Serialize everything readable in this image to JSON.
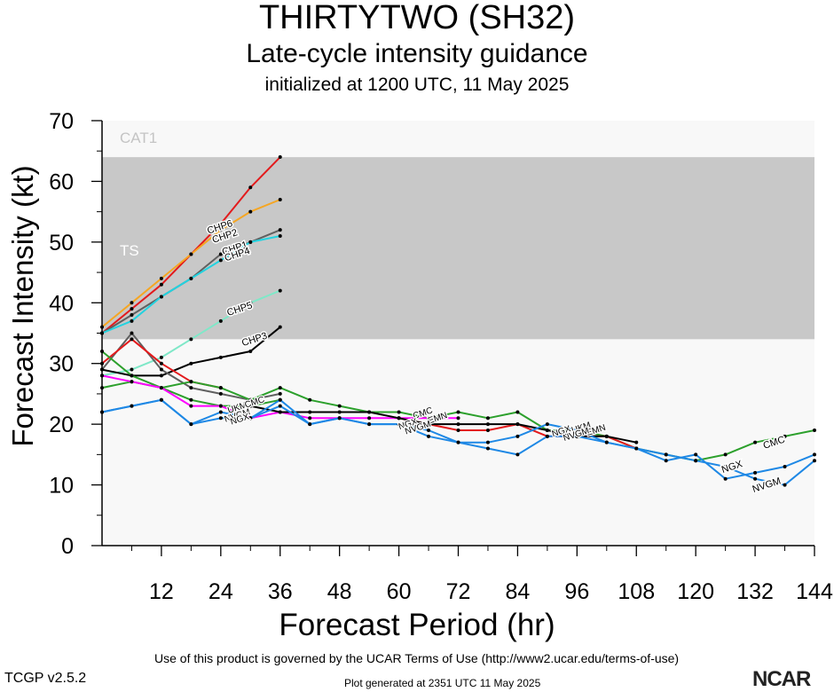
{
  "header": {
    "storm_title": "THIRTYTWO (SH32)",
    "subtitle": "Late-cycle intensity guidance",
    "initialized": "initialized at 1200 UTC, 11 May 2025"
  },
  "footer": {
    "terms": "Use of this product is governed by the UCAR Terms of Use (http://www2.ucar.edu/terms-of-use)",
    "version": "TCGP v2.5.2",
    "generated": "Plot generated at 2351 UTC   11 May 2025",
    "brand": "NCAR"
  },
  "chart_data": {
    "type": "line",
    "title": "THIRTYTWO (SH32)",
    "xlabel": "Forecast Period (hr)",
    "ylabel": "Forecast Intensity (kt)",
    "xlim": [
      0,
      144
    ],
    "ylim": [
      0,
      70
    ],
    "xticks": [
      "12",
      "24",
      "36",
      "48",
      "60",
      "72",
      "84",
      "96",
      "108",
      "120",
      "132",
      "144"
    ],
    "yticks": [
      "0",
      "10",
      "20",
      "30",
      "40",
      "50",
      "60",
      "70"
    ],
    "bands": [
      {
        "label": "TS",
        "from": 34,
        "to": 64,
        "color": "#c8c8c8"
      },
      {
        "label": "CAT1",
        "from": 64,
        "to": 70,
        "color": "#f8f8f8"
      }
    ],
    "background_color": "#f8f8f8",
    "series": [
      {
        "name": "CHP6",
        "color": "#e31a1c",
        "x": [
          0,
          6,
          12,
          18,
          24,
          30,
          36
        ],
        "y": [
          35,
          39,
          43,
          48,
          53,
          59,
          64
        ],
        "label_at": [
          24,
          52
        ]
      },
      {
        "name": "CHP2",
        "color": "#f5a623",
        "x": [
          0,
          6,
          12,
          18,
          24,
          30,
          36
        ],
        "y": [
          36,
          40,
          44,
          48,
          52,
          55,
          57
        ],
        "label_at": [
          25,
          50.5
        ]
      },
      {
        "name": "CHP1",
        "color": "#606060",
        "x": [
          0,
          6,
          12,
          18,
          24,
          30,
          36
        ],
        "y": [
          35,
          38,
          41,
          44,
          48,
          50,
          52
        ],
        "label_at": [
          27,
          48.5
        ]
      },
      {
        "name": "CHP4",
        "color": "#22d3e0",
        "x": [
          0,
          6,
          12,
          18,
          24,
          30,
          36
        ],
        "y": [
          35,
          37,
          41,
          44,
          47,
          50,
          51
        ],
        "label_at": [
          27.5,
          47.5
        ]
      },
      {
        "name": "CHP5",
        "color": "#7fe8c8",
        "x": [
          0,
          6,
          12,
          18,
          24,
          30,
          36
        ],
        "y": [
          28,
          29,
          31,
          34,
          37,
          40,
          42
        ],
        "label_at": [
          28,
          38.5
        ]
      },
      {
        "name": "CHP3",
        "color": "#000000",
        "x": [
          0,
          6,
          12,
          18,
          24,
          30,
          36
        ],
        "y": [
          29,
          28,
          28,
          30,
          31,
          32,
          36
        ],
        "label_at": [
          31,
          33.5
        ]
      },
      {
        "name": "",
        "color": "#606060",
        "x": [
          0,
          6,
          12,
          18,
          24,
          30,
          36
        ],
        "y": [
          29,
          35,
          29,
          26,
          25,
          24,
          25
        ],
        "label_at": null
      },
      {
        "name": "",
        "color": "#e31a1c",
        "x": [
          0,
          6,
          12,
          18,
          24
        ],
        "y": [
          30,
          34,
          30,
          27,
          26
        ],
        "label_at": null
      },
      {
        "name": "CMC",
        "color": "#2ca02c",
        "x": [
          0,
          6,
          12,
          18,
          24,
          30,
          36,
          42,
          48,
          54,
          60,
          66,
          72,
          78,
          84,
          90,
          96,
          102,
          108,
          114,
          120,
          126,
          132,
          138,
          144
        ],
        "y": [
          32,
          28,
          26,
          27,
          26,
          24,
          26,
          24,
          23,
          22,
          22,
          21,
          22,
          21,
          22,
          19,
          19,
          18,
          16,
          15,
          14,
          15,
          17,
          18,
          19
        ],
        "label_at": [
          136,
          16.5
        ]
      },
      {
        "name": "",
        "color": "#2ca02c",
        "x": [
          0,
          6,
          12,
          18,
          24,
          30,
          36
        ],
        "y": [
          26,
          27,
          26,
          24,
          23,
          23,
          24
        ],
        "label_at": null
      },
      {
        "name": "",
        "color": "#ff00ff",
        "x": [
          0,
          6,
          12,
          18,
          24,
          30,
          36,
          42,
          48,
          54,
          60,
          66,
          72
        ],
        "y": [
          28,
          27,
          26,
          23,
          23,
          21,
          22,
          21,
          21,
          21,
          21,
          21,
          21
        ],
        "label_at": null
      },
      {
        "name": "",
        "color": "#e31a1c",
        "x": [
          60,
          66,
          72,
          78,
          84,
          90,
          96,
          102,
          108
        ],
        "y": [
          21,
          20,
          19,
          19,
          20,
          18,
          18,
          18,
          16
        ],
        "label_at": null
      },
      {
        "name": "",
        "color": "#000000",
        "x": [
          30,
          36,
          42,
          48,
          54,
          60,
          66,
          72,
          78,
          84,
          90,
          96,
          102,
          108
        ],
        "y": [
          23,
          22,
          22,
          22,
          22,
          21,
          20,
          20,
          20,
          20,
          19,
          18,
          18,
          17
        ],
        "label_at": null
      },
      {
        "name": "NGX",
        "color": "#1e88e5",
        "x": [
          0,
          6,
          12,
          18,
          24,
          30,
          36,
          42,
          48,
          54,
          60,
          66,
          72,
          78,
          84,
          90,
          96,
          102,
          108,
          114,
          120,
          126,
          132,
          138,
          144
        ],
        "y": [
          22,
          23,
          24,
          20,
          21,
          21,
          24,
          20,
          21,
          20,
          20,
          19,
          17,
          17,
          18,
          20,
          19,
          17,
          16,
          14,
          15,
          11,
          12,
          13,
          15
        ],
        "label_at": [
          127.5,
          12.5
        ]
      },
      {
        "name": "NVGM",
        "color": "#1e88e5",
        "x": [
          0,
          6,
          12,
          18,
          24,
          30,
          36,
          42,
          48,
          54,
          60,
          66,
          72,
          78,
          84,
          90,
          96,
          102,
          108,
          114,
          120,
          126,
          132,
          138,
          144
        ],
        "y": [
          22,
          23,
          24,
          20,
          22,
          21,
          23,
          20,
          21,
          20,
          20,
          18,
          17,
          16,
          15,
          18,
          18,
          17,
          16,
          15,
          14,
          13,
          11,
          10,
          14
        ],
        "label_at": [
          134.5,
          9.5
        ]
      }
    ]
  }
}
